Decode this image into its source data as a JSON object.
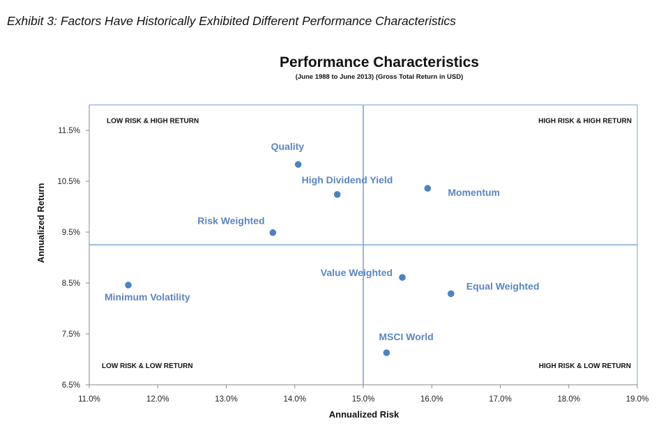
{
  "exhibit_caption": "Exhibit 3: Factors Have Historically Exhibited Different Performance Characteristics",
  "chart_data": {
    "type": "scatter",
    "title": "Performance Characteristics",
    "subtitle": "(June 1988 to June 2013) (Gross Total Return in USD)",
    "xlabel": "Annualized Risk",
    "ylabel": "Annualized Return",
    "xlim": [
      11.0,
      19.0
    ],
    "ylim": [
      6.5,
      12.0
    ],
    "x_ticks": [
      11.0,
      12.0,
      13.0,
      14.0,
      15.0,
      16.0,
      17.0,
      18.0,
      19.0
    ],
    "x_tick_labels": [
      "11.0%",
      "12.0%",
      "13.0%",
      "14.0%",
      "15.0%",
      "16.0%",
      "17.0%",
      "18.0%",
      "19.0%"
    ],
    "y_ticks": [
      6.5,
      7.5,
      8.5,
      9.5,
      10.5,
      11.5
    ],
    "y_tick_labels": [
      "6.5%",
      "7.5%",
      "8.5%",
      "9.5%",
      "10.5%",
      "11.5%"
    ],
    "grid": false,
    "legend": "none",
    "divider_x": 15.0,
    "divider_y": 9.25,
    "marker_color": "#4f81bd",
    "label_color": "#5b86c0",
    "divider_color": "#7ea3d0",
    "quadrant_labels": [
      {
        "text": "LOW RISK & HIGH RETURN",
        "position": "top-left"
      },
      {
        "text": "HIGH RISK & HIGH RETURN",
        "position": "top-right"
      },
      {
        "text": "LOW RISK & LOW RETURN",
        "position": "bottom-left"
      },
      {
        "text": "HIGH RISK & LOW RETURN",
        "position": "bottom-right"
      }
    ],
    "points": [
      {
        "name": "Quality",
        "x": 14.05,
        "y": 10.83,
        "label_side": "above-left"
      },
      {
        "name": "High Dividend Yield",
        "x": 14.62,
        "y": 10.24,
        "label_side": "above-right"
      },
      {
        "name": "Momentum",
        "x": 15.94,
        "y": 10.36,
        "label_side": "right"
      },
      {
        "name": "Risk Weighted",
        "x": 13.68,
        "y": 9.49,
        "label_side": "above-left"
      },
      {
        "name": "Minimum Volatility",
        "x": 11.57,
        "y": 8.46,
        "label_side": "below-right"
      },
      {
        "name": "Value Weighted",
        "x": 15.57,
        "y": 8.61,
        "label_side": "left"
      },
      {
        "name": "Equal Weighted",
        "x": 16.28,
        "y": 8.29,
        "label_side": "above-right"
      },
      {
        "name": "MSCI World",
        "x": 15.34,
        "y": 7.13,
        "label_side": "above"
      }
    ]
  }
}
